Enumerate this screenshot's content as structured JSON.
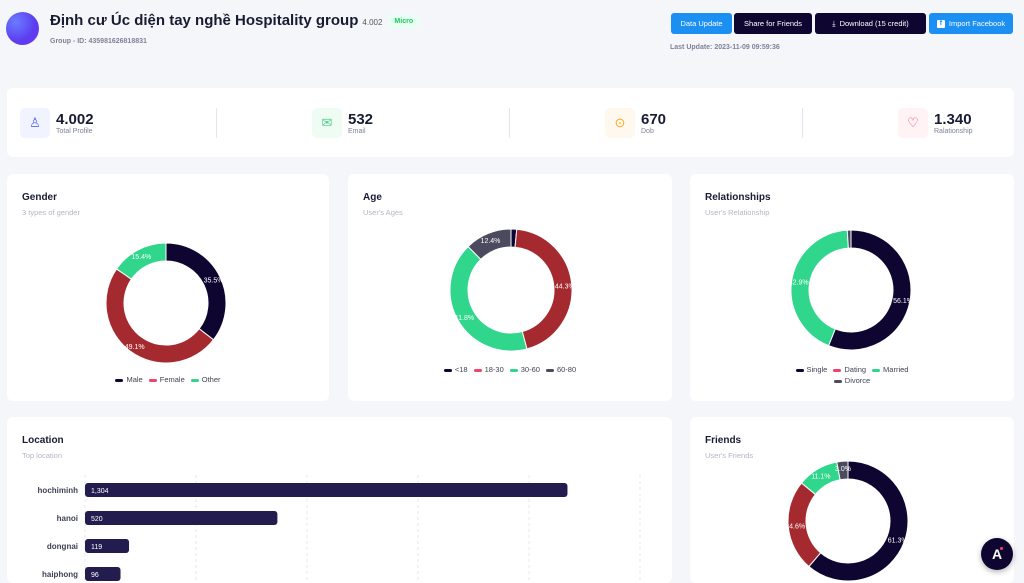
{
  "header": {
    "title": "Định cư Úc diện tay nghề Hospitality group",
    "member_count": "4.002",
    "badge": "Micro",
    "group_id": "Group - ID: 435981626818831",
    "last_update": "Last Update: 2023-11-09 09:59:36",
    "buttons": {
      "data_update": "Data Update",
      "share": "Share for Friends",
      "download": "Download (15 credit)",
      "import": "Import Facebook"
    }
  },
  "stats": [
    {
      "value": "4.002",
      "label": "Total Profile",
      "icon": "user-icon",
      "color": "#5468ff",
      "bg": "#f1f3ff"
    },
    {
      "value": "532",
      "label": "Email",
      "icon": "email-icon",
      "color": "#50cd89",
      "bg": "#effcf4"
    },
    {
      "value": "670",
      "label": "Dob",
      "icon": "location-pin-icon",
      "color": "#ffa621",
      "bg": "#fff8ee"
    },
    {
      "value": "1.340",
      "label": "Ralationship",
      "icon": "hearts-icon",
      "color": "#f1416c",
      "bg": "#fff3f5"
    }
  ],
  "chart_data": [
    {
      "id": "gender",
      "type": "pie",
      "title": "Gender",
      "subtitle": "3 types of gender",
      "categories": [
        "Male",
        "Female",
        "Other"
      ],
      "values": [
        35.5,
        49.1,
        15.4
      ],
      "labels": [
        "35.5%",
        "49.1%",
        "15.4%"
      ],
      "colors": [
        "#0e0630",
        "#a52a2f",
        "#2fd68b"
      ],
      "legend_colors": [
        "#0e0630",
        "#f1416c",
        "#2fd68b"
      ]
    },
    {
      "id": "age",
      "type": "pie",
      "title": "Age",
      "subtitle": "User's Ages",
      "categories": [
        "<18",
        "18-30",
        "30-60",
        "60-80"
      ],
      "values": [
        1.5,
        44.3,
        41.8,
        12.4
      ],
      "labels": [
        "",
        "44.3%",
        "41.8%",
        "12.4%"
      ],
      "colors": [
        "#0e0630",
        "#a52a2f",
        "#2fd68b",
        "#4b4a5e"
      ],
      "legend_colors": [
        "#0e0630",
        "#f1416c",
        "#2fd68b",
        "#4b4a5e"
      ]
    },
    {
      "id": "relationships",
      "type": "pie",
      "title": "Relationships",
      "subtitle": "User's Relationship",
      "categories": [
        "Single",
        "Dating",
        "Married",
        "Divorce"
      ],
      "values": [
        56.1,
        0,
        42.9,
        1.0
      ],
      "labels": [
        "56.1%",
        "",
        "42.9%",
        ""
      ],
      "colors": [
        "#0e0630",
        "#a52a2f",
        "#2fd68b",
        "#4b4a5e"
      ],
      "legend_colors": [
        "#0e0630",
        "#f1416c",
        "#2fd68b",
        "#4b4a5e"
      ]
    },
    {
      "id": "location",
      "type": "bar",
      "orientation": "horizontal",
      "title": "Location",
      "subtitle": "Top location",
      "categories": [
        "hochiminh",
        "hanoi",
        "dongnai",
        "haiphong"
      ],
      "values": [
        1304,
        520,
        119,
        96
      ],
      "value_labels": [
        "1,304",
        "520",
        "119",
        "96"
      ],
      "xlim": [
        0,
        1500
      ],
      "grid": true,
      "color": "#231c4f"
    },
    {
      "id": "friends",
      "type": "pie",
      "title": "Friends",
      "subtitle": "User's Friends",
      "values": [
        61.3,
        24.6,
        11.1,
        3.0
      ],
      "labels": [
        "61.3%",
        "24.6%",
        "11.1%",
        "3.0%"
      ],
      "colors": [
        "#0e0630",
        "#a52a2f",
        "#2fd68b",
        "#4b4a5e"
      ]
    }
  ],
  "fab": {
    "label": "A"
  }
}
